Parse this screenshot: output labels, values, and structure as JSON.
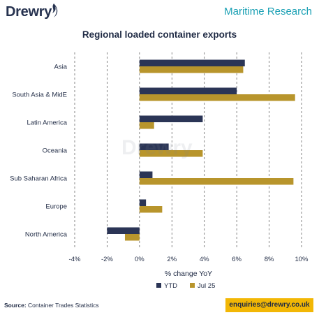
{
  "header": {
    "logo_text": "Drewry",
    "brand_title": "Maritime Research"
  },
  "footer": {
    "source_label": "Source:",
    "source_text": "Container Trades Statistics",
    "email": "enquiries@drewry.co.uk"
  },
  "colors": {
    "ytd": "#2b3556",
    "jul25": "#b8952c",
    "gridline": "#666666",
    "brand_teal": "#1aa0b4",
    "email_box": "#f2b705"
  },
  "chart_data": {
    "type": "bar",
    "orientation": "horizontal",
    "title": "Regional loaded container exports",
    "xlabel": "% change YoY",
    "ylabel": "",
    "categories": [
      "Asia",
      "South Asia & MidE",
      "Latin America",
      "Oceania",
      "Sub Saharan Africa",
      "Europe",
      "North America"
    ],
    "series": [
      {
        "name": "YTD",
        "values": [
          6.5,
          6.0,
          3.9,
          1.8,
          0.8,
          0.4,
          -2.0
        ]
      },
      {
        "name": "Jul 25",
        "values": [
          6.4,
          9.6,
          0.9,
          3.9,
          9.5,
          1.4,
          -0.9
        ]
      }
    ],
    "xlim": [
      -4,
      10
    ],
    "xticks": [
      "-4%",
      "-2%",
      "0%",
      "2%",
      "4%",
      "6%",
      "8%",
      "10%"
    ],
    "xtick_values": [
      -4,
      -2,
      0,
      2,
      4,
      6,
      8,
      10
    ],
    "grid": "vertical dashed",
    "legend_position": "bottom"
  }
}
